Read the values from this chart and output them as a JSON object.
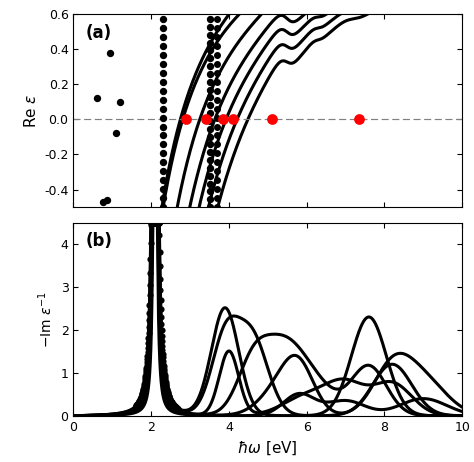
{
  "title_a": "(a)",
  "title_b": "(b)",
  "xlabel": "$\\hbar\\omega$ [eV]",
  "ylabel_a": "Re $\\varepsilon$",
  "ylabel_b": "$-$Im $\\varepsilon^{-1}$",
  "xlim": [
    0,
    10
  ],
  "ylim_a": [
    -0.5,
    0.6
  ],
  "ylim_b": [
    0.0,
    4.5
  ],
  "yticks_a": [
    -0.4,
    -0.2,
    0.0,
    0.2,
    0.4,
    0.6
  ],
  "yticks_b": [
    0.0,
    1.0,
    2.0,
    3.0,
    4.0
  ],
  "xticks": [
    0,
    2,
    4,
    6,
    8,
    10
  ],
  "red_dot_color": "#ff0000",
  "red_dot_x": [
    2.9,
    3.4,
    3.85,
    4.1,
    5.1,
    7.35
  ],
  "line_color": "#000000",
  "dot_color": "#000000",
  "background_color": "#ffffff",
  "figsize": [
    4.74,
    4.62
  ],
  "dpi": 100,
  "line_width": 2.2,
  "dot_size_chain": 28,
  "dot_size_scatter": 28
}
